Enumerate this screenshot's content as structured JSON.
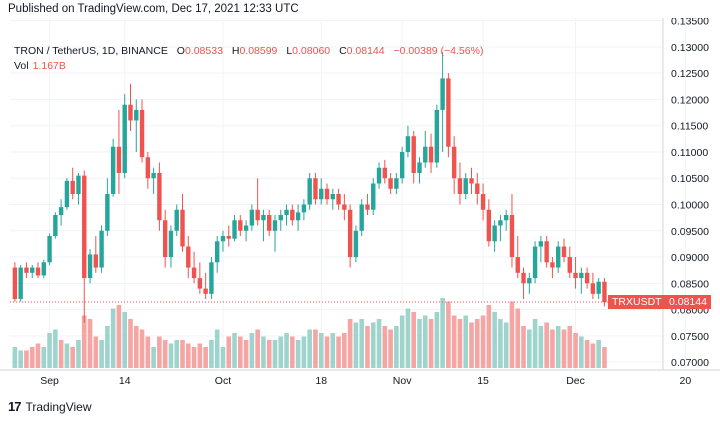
{
  "header": {
    "published": "Published on TradingView.com, Dec 17, 2021 12:33 UTC"
  },
  "legend": {
    "symbol": "TRON / TetherUS, 1D, BINANCE",
    "o_label": "O",
    "o": "0.08533",
    "h_label": "H",
    "h": "0.08599",
    "l_label": "L",
    "l": "0.08060",
    "c_label": "C",
    "c": "0.08144",
    "change": "−0.00389 (−4.56%)",
    "vol_label": "Vol",
    "vol": "1.167B"
  },
  "price_tag": {
    "ticker": "TRXUSDT",
    "price": "0.08144"
  },
  "footer": {
    "logo": "17",
    "brand": "TradingView"
  },
  "colors": {
    "up": "#26a69a",
    "down": "#ef5350",
    "up_vol": "#9fd4cd",
    "down_vol": "#f4a5a4",
    "grid": "#f0f3fa"
  },
  "chart_data": {
    "type": "candlestick",
    "symbol": "TRXUSDT",
    "interval": "1D",
    "ylim": [
      0.0685,
      0.1355
    ],
    "y_ticks": [
      "0.13500",
      "0.13000",
      "0.12500",
      "0.12000",
      "0.11500",
      "0.11000",
      "0.10500",
      "0.10000",
      "0.09500",
      "0.09000",
      "0.08500",
      "0.08000",
      "0.07500",
      "0.07000"
    ],
    "x_ticks": [
      {
        "label": "Sep",
        "i": 6
      },
      {
        "label": "14",
        "i": 19
      },
      {
        "label": "Oct",
        "i": 36
      },
      {
        "label": "18",
        "i": 53
      },
      {
        "label": "Nov",
        "i": 67
      },
      {
        "label": "15",
        "i": 81
      },
      {
        "label": "Dec",
        "i": 97
      },
      {
        "label": "20",
        "i": 116
      }
    ],
    "candles": [
      [
        0.088,
        0.089,
        0.0815,
        0.082
      ],
      [
        0.082,
        0.0885,
        0.0815,
        0.088
      ],
      [
        0.088,
        0.089,
        0.086,
        0.087
      ],
      [
        0.087,
        0.0885,
        0.086,
        0.088
      ],
      [
        0.088,
        0.089,
        0.086,
        0.0865
      ],
      [
        0.0865,
        0.0895,
        0.086,
        0.089
      ],
      [
        0.089,
        0.0945,
        0.0885,
        0.094
      ],
      [
        0.094,
        0.0985,
        0.0935,
        0.098
      ],
      [
        0.098,
        0.101,
        0.096,
        0.0995
      ],
      [
        0.0995,
        0.105,
        0.099,
        0.1045
      ],
      [
        0.1045,
        0.107,
        0.101,
        0.102
      ],
      [
        0.102,
        0.106,
        0.1,
        0.1055
      ],
      [
        0.1055,
        0.1065,
        0.0775,
        0.086
      ],
      [
        0.086,
        0.0915,
        0.085,
        0.0905
      ],
      [
        0.0905,
        0.094,
        0.087,
        0.088
      ],
      [
        0.088,
        0.096,
        0.087,
        0.095
      ],
      [
        0.095,
        0.105,
        0.094,
        0.102
      ],
      [
        0.102,
        0.1125,
        0.1015,
        0.111
      ],
      [
        0.111,
        0.118,
        0.102,
        0.106
      ],
      [
        0.106,
        0.121,
        0.105,
        0.119
      ],
      [
        0.119,
        0.123,
        0.114,
        0.116
      ],
      [
        0.116,
        0.12,
        0.11,
        0.118
      ],
      [
        0.118,
        0.12,
        0.108,
        0.109
      ],
      [
        0.109,
        0.11,
        0.103,
        0.105
      ],
      [
        0.105,
        0.107,
        0.102,
        0.106
      ],
      [
        0.106,
        0.108,
        0.095,
        0.097
      ],
      [
        0.097,
        0.099,
        0.088,
        0.09
      ],
      [
        0.09,
        0.096,
        0.088,
        0.095
      ],
      [
        0.095,
        0.1,
        0.094,
        0.099
      ],
      [
        0.099,
        0.102,
        0.091,
        0.092
      ],
      [
        0.092,
        0.094,
        0.086,
        0.088
      ],
      [
        0.088,
        0.091,
        0.085,
        0.086
      ],
      [
        0.086,
        0.089,
        0.083,
        0.084
      ],
      [
        0.084,
        0.087,
        0.082,
        0.083
      ],
      [
        0.083,
        0.09,
        0.082,
        0.089
      ],
      [
        0.089,
        0.094,
        0.087,
        0.093
      ],
      [
        0.093,
        0.095,
        0.091,
        0.094
      ],
      [
        0.094,
        0.096,
        0.092,
        0.0935
      ],
      [
        0.0935,
        0.098,
        0.093,
        0.097
      ],
      [
        0.097,
        0.098,
        0.094,
        0.095
      ],
      [
        0.095,
        0.097,
        0.093,
        0.096
      ],
      [
        0.096,
        0.1,
        0.095,
        0.099
      ],
      [
        0.099,
        0.105,
        0.096,
        0.097
      ],
      [
        0.097,
        0.099,
        0.093,
        0.098
      ],
      [
        0.098,
        0.099,
        0.094,
        0.095
      ],
      [
        0.095,
        0.098,
        0.091,
        0.097
      ],
      [
        0.097,
        0.099,
        0.095,
        0.098
      ],
      [
        0.098,
        0.1,
        0.096,
        0.099
      ],
      [
        0.099,
        0.1,
        0.096,
        0.097
      ],
      [
        0.097,
        0.1,
        0.095,
        0.0985
      ],
      [
        0.0985,
        0.101,
        0.097,
        0.1
      ],
      [
        0.1,
        0.106,
        0.099,
        0.105
      ],
      [
        0.105,
        0.106,
        0.1,
        0.101
      ],
      [
        0.101,
        0.105,
        0.1,
        0.103
      ],
      [
        0.103,
        0.104,
        0.1,
        0.101
      ],
      [
        0.101,
        0.103,
        0.099,
        0.102
      ],
      [
        0.102,
        0.103,
        0.099,
        0.1
      ],
      [
        0.1,
        0.102,
        0.097,
        0.099
      ],
      [
        0.099,
        0.1,
        0.088,
        0.09
      ],
      [
        0.09,
        0.096,
        0.089,
        0.095
      ],
      [
        0.095,
        0.101,
        0.094,
        0.1
      ],
      [
        0.1,
        0.102,
        0.098,
        0.099
      ],
      [
        0.099,
        0.105,
        0.098,
        0.104
      ],
      [
        0.104,
        0.108,
        0.103,
        0.107
      ],
      [
        0.107,
        0.1085,
        0.104,
        0.105
      ],
      [
        0.105,
        0.106,
        0.102,
        0.103
      ],
      [
        0.103,
        0.106,
        0.102,
        0.105
      ],
      [
        0.105,
        0.111,
        0.104,
        0.11
      ],
      [
        0.11,
        0.115,
        0.109,
        0.113
      ],
      [
        0.113,
        0.114,
        0.104,
        0.106
      ],
      [
        0.106,
        0.109,
        0.104,
        0.108
      ],
      [
        0.108,
        0.114,
        0.107,
        0.111
      ],
      [
        0.111,
        0.1135,
        0.106,
        0.108
      ],
      [
        0.108,
        0.119,
        0.107,
        0.118
      ],
      [
        0.118,
        0.129,
        0.11,
        0.124
      ],
      [
        0.124,
        0.125,
        0.109,
        0.111
      ],
      [
        0.111,
        0.113,
        0.102,
        0.105
      ],
      [
        0.105,
        0.108,
        0.1,
        0.102
      ],
      [
        0.102,
        0.106,
        0.101,
        0.105
      ],
      [
        0.105,
        0.107,
        0.102,
        0.104
      ],
      [
        0.104,
        0.106,
        0.1,
        0.102
      ],
      [
        0.102,
        0.104,
        0.097,
        0.099
      ],
      [
        0.099,
        0.101,
        0.092,
        0.093
      ],
      [
        0.093,
        0.097,
        0.091,
        0.096
      ],
      [
        0.096,
        0.098,
        0.093,
        0.097
      ],
      [
        0.097,
        0.099,
        0.095,
        0.098
      ],
      [
        0.098,
        0.102,
        0.088,
        0.09
      ],
      [
        0.09,
        0.094,
        0.086,
        0.087
      ],
      [
        0.087,
        0.088,
        0.082,
        0.085
      ],
      [
        0.085,
        0.087,
        0.083,
        0.086
      ],
      [
        0.086,
        0.093,
        0.085,
        0.092
      ],
      [
        0.092,
        0.094,
        0.089,
        0.093
      ],
      [
        0.093,
        0.094,
        0.088,
        0.089
      ],
      [
        0.089,
        0.09,
        0.086,
        0.088
      ],
      [
        0.088,
        0.093,
        0.087,
        0.092
      ],
      [
        0.092,
        0.0935,
        0.089,
        0.09
      ],
      [
        0.09,
        0.092,
        0.086,
        0.087
      ],
      [
        0.087,
        0.09,
        0.084,
        0.086
      ],
      [
        0.086,
        0.088,
        0.083,
        0.087
      ],
      [
        0.087,
        0.088,
        0.084,
        0.085
      ],
      [
        0.085,
        0.087,
        0.082,
        0.083
      ],
      [
        0.083,
        0.086,
        0.082,
        0.0853
      ],
      [
        0.0853,
        0.086,
        0.0806,
        0.0814
      ]
    ],
    "volumes": [
      [
        0.3,
        0
      ],
      [
        0.25,
        0
      ],
      [
        0.25,
        1
      ],
      [
        0.3,
        1
      ],
      [
        0.35,
        1
      ],
      [
        0.3,
        0
      ],
      [
        0.5,
        0
      ],
      [
        0.55,
        0
      ],
      [
        0.4,
        1
      ],
      [
        0.35,
        0
      ],
      [
        0.3,
        1
      ],
      [
        0.4,
        0
      ],
      [
        0.75,
        1
      ],
      [
        0.7,
        1
      ],
      [
        0.45,
        1
      ],
      [
        0.4,
        0
      ],
      [
        0.6,
        0
      ],
      [
        0.85,
        0
      ],
      [
        0.9,
        1
      ],
      [
        0.8,
        0
      ],
      [
        0.7,
        1
      ],
      [
        0.6,
        1
      ],
      [
        0.55,
        1
      ],
      [
        0.45,
        1
      ],
      [
        0.3,
        0
      ],
      [
        0.45,
        1
      ],
      [
        0.4,
        1
      ],
      [
        0.35,
        0
      ],
      [
        0.4,
        0
      ],
      [
        0.4,
        1
      ],
      [
        0.35,
        1
      ],
      [
        0.3,
        1
      ],
      [
        0.35,
        1
      ],
      [
        0.3,
        1
      ],
      [
        0.4,
        0
      ],
      [
        0.55,
        0
      ],
      [
        0.3,
        0
      ],
      [
        0.45,
        1
      ],
      [
        0.5,
        0
      ],
      [
        0.45,
        1
      ],
      [
        0.4,
        1
      ],
      [
        0.5,
        0
      ],
      [
        0.55,
        1
      ],
      [
        0.45,
        0
      ],
      [
        0.4,
        1
      ],
      [
        0.4,
        0
      ],
      [
        0.45,
        0
      ],
      [
        0.5,
        0
      ],
      [
        0.45,
        1
      ],
      [
        0.4,
        0
      ],
      [
        0.45,
        0
      ],
      [
        0.55,
        0
      ],
      [
        0.55,
        1
      ],
      [
        0.5,
        0
      ],
      [
        0.45,
        1
      ],
      [
        0.5,
        0
      ],
      [
        0.45,
        1
      ],
      [
        0.5,
        1
      ],
      [
        0.7,
        1
      ],
      [
        0.65,
        0
      ],
      [
        0.7,
        0
      ],
      [
        0.6,
        1
      ],
      [
        0.65,
        0
      ],
      [
        0.7,
        0
      ],
      [
        0.6,
        1
      ],
      [
        0.55,
        1
      ],
      [
        0.6,
        0
      ],
      [
        0.75,
        0
      ],
      [
        0.85,
        0
      ],
      [
        0.8,
        1
      ],
      [
        0.7,
        0
      ],
      [
        0.75,
        0
      ],
      [
        0.7,
        1
      ],
      [
        0.8,
        0
      ],
      [
        1.0,
        0
      ],
      [
        0.95,
        1
      ],
      [
        0.75,
        1
      ],
      [
        0.7,
        1
      ],
      [
        0.75,
        0
      ],
      [
        0.65,
        1
      ],
      [
        0.7,
        1
      ],
      [
        0.75,
        1
      ],
      [
        0.9,
        1
      ],
      [
        0.8,
        0
      ],
      [
        0.7,
        0
      ],
      [
        0.65,
        0
      ],
      [
        0.95,
        1
      ],
      [
        0.85,
        1
      ],
      [
        0.6,
        1
      ],
      [
        0.55,
        0
      ],
      [
        0.7,
        0
      ],
      [
        0.6,
        0
      ],
      [
        0.65,
        1
      ],
      [
        0.55,
        1
      ],
      [
        0.6,
        0
      ],
      [
        0.55,
        1
      ],
      [
        0.6,
        1
      ],
      [
        0.5,
        1
      ],
      [
        0.45,
        0
      ],
      [
        0.4,
        1
      ],
      [
        0.35,
        1
      ],
      [
        0.4,
        0
      ],
      [
        0.3,
        1
      ]
    ]
  }
}
